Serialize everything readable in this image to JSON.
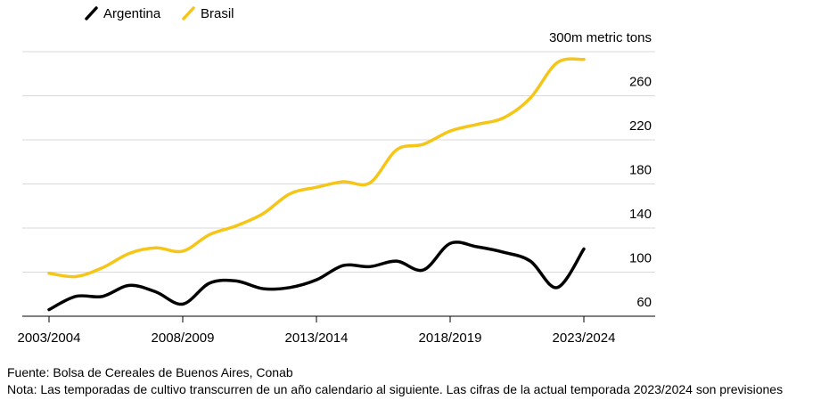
{
  "chart_data": {
    "type": "line",
    "categories": [
      "2003/2004",
      null,
      null,
      null,
      null,
      "2008/2009",
      null,
      null,
      null,
      null,
      "2013/2014",
      null,
      null,
      null,
      null,
      "2018/2019",
      null,
      null,
      null,
      null,
      "2023/2024"
    ],
    "series": [
      {
        "name": "Argentina",
        "color": "#000000",
        "values": [
          66,
          78,
          78,
          88,
          82,
          71,
          90,
          92,
          85,
          86,
          93,
          106,
          105,
          110,
          102,
          126,
          123,
          118,
          110,
          86,
          121
        ]
      },
      {
        "name": "Brasil",
        "color": "#f5c518",
        "values": [
          99,
          96,
          104,
          117,
          122,
          119,
          134,
          142,
          153,
          171,
          177,
          182,
          181,
          211,
          216,
          228,
          234,
          240,
          258,
          290,
          293
        ]
      }
    ],
    "ylim": [
      60,
      300
    ],
    "yticks": [
      60,
      100,
      140,
      180,
      220,
      260,
      {
        "value": 300,
        "label": "300m metric tons"
      }
    ],
    "grid": true,
    "source": "Fuente: Bolsa de Cereales de Buenos Aires, Conab",
    "note": "Nota: Las temporadas de cultivo transcurren de un año calendario al siguiente. Las cifras de la actual temporada 2023/2024 son previsiones"
  }
}
